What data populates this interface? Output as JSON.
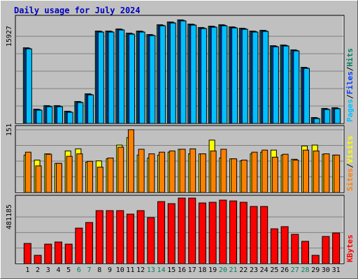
{
  "chart_data": [
    {
      "type": "bar",
      "title": "Daily usage for July 2024",
      "categories": [
        "1",
        "2",
        "3",
        "4",
        "5",
        "6",
        "7",
        "8",
        "9",
        "10",
        "11",
        "12",
        "13",
        "14",
        "15",
        "16",
        "17",
        "18",
        "19",
        "20",
        "21",
        "22",
        "23",
        "24",
        "25",
        "26",
        "27",
        "28",
        "29",
        "30",
        "31"
      ],
      "category_colors": [
        "#000000",
        "#000000",
        "#000000",
        "#000000",
        "#000000",
        "#00805c",
        "#00805c",
        "#000000",
        "#000000",
        "#000000",
        "#000000",
        "#000000",
        "#00805c",
        "#00805c",
        "#000000",
        "#000000",
        "#000000",
        "#000000",
        "#000000",
        "#00805c",
        "#00805c",
        "#000000",
        "#000000",
        "#000000",
        "#000000",
        "#000000",
        "#00805c",
        "#00805c",
        "#000000",
        "#000000",
        "#000000"
      ],
      "legend_separator": "/",
      "series": [
        {
          "name": "Hits",
          "color": "#00805c",
          "values": [
            13830,
            2620,
            3260,
            3260,
            2240,
            4020,
            5420,
            16890,
            16890,
            17270,
            16510,
            16890,
            16250,
            18040,
            18550,
            18930,
            18160,
            17530,
            17780,
            18040,
            17650,
            17400,
            16890,
            17020,
            14210,
            14340,
            13450,
            10260,
            1090,
            2750,
            2880
          ]
        },
        {
          "name": "Files",
          "color": "#0040ff",
          "values": [
            13730,
            2520,
            3160,
            3160,
            2140,
            3920,
            5320,
            16790,
            16790,
            17170,
            16410,
            16790,
            16150,
            17940,
            18450,
            18830,
            18060,
            17430,
            17680,
            17940,
            17550,
            17300,
            16790,
            16920,
            14110,
            14240,
            13350,
            10160,
            990,
            2650,
            2780
          ]
        },
        {
          "name": "Pages",
          "color": "#00c0ff",
          "values": [
            13630,
            2420,
            3060,
            3060,
            2040,
            3820,
            5220,
            16690,
            16690,
            17070,
            16310,
            16690,
            16050,
            17840,
            18350,
            18730,
            17960,
            17330,
            17580,
            17840,
            17450,
            17200,
            16690,
            16820,
            14010,
            14140,
            13250,
            10060,
            890,
            2550,
            2680
          ]
        }
      ],
      "ylim": [
        0,
        19750
      ],
      "yticks": [
        15927
      ],
      "grid_divisions": 5
    },
    {
      "type": "bar",
      "legend_separator": "/",
      "series": [
        {
          "name": "Visits",
          "color": "#ffff00",
          "values": [
            90,
            78,
            93,
            70,
            100,
            105,
            73,
            76,
            81,
            114,
            132,
            90,
            83,
            90,
            97,
            104,
            93,
            93,
            126,
            83,
            81,
            76,
            93,
            97,
            102,
            90,
            80,
            112,
            114,
            92,
            90
          ]
        },
        {
          "name": "Sites",
          "color": "#ff8000",
          "values": [
            97,
            64,
            92,
            70,
            87,
            93,
            75,
            61,
            83,
            109,
            151,
            104,
            93,
            97,
            100,
            104,
            105,
            93,
            100,
            104,
            81,
            78,
            97,
            102,
            85,
            92,
            78,
            102,
            100,
            93,
            90
          ]
        }
      ],
      "ylim": [
        0,
        161
      ],
      "yticks": [
        151
      ],
      "grid_divisions": 4
    },
    {
      "type": "bar",
      "series": [
        {
          "name": "KBytes",
          "color": "#ff0000",
          "values": [
            208000,
            86000,
            201000,
            223000,
            201000,
            366000,
            424000,
            546000,
            546000,
            546000,
            510000,
            546000,
            474000,
            639000,
            618000,
            675000,
            675000,
            625000,
            632000,
            654000,
            646000,
            632000,
            589000,
            589000,
            359000,
            381000,
            302000,
            230000,
            86000,
            280000,
            316000
          ]
        }
      ],
      "ylim": [
        0,
        703800
      ],
      "yticks": [
        481185
      ],
      "grid_divisions": 3
    }
  ]
}
